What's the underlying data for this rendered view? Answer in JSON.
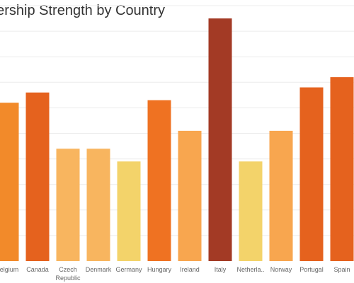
{
  "chart_data": {
    "type": "bar",
    "title": "Leadership Strength by Country",
    "title_visible": "dership Strength by Country",
    "categories": [
      "Belgium",
      "Canada",
      "Czech Republic",
      "Denmark",
      "Germany",
      "Hungary",
      "Ireland",
      "Italy",
      "Netherlands",
      "Norway",
      "Portugal",
      "Spain"
    ],
    "category_labels": [
      "Belgium",
      "Canada",
      "Czech\nRepublic",
      "Denmark",
      "Germany",
      "Hungary",
      "Ireland",
      "Italy",
      "Netherla..",
      "Norway",
      "Portugal",
      "Spain"
    ],
    "values": [
      6.2,
      6.6,
      4.4,
      4.4,
      3.9,
      6.3,
      5.1,
      9.5,
      3.9,
      5.1,
      6.8,
      7.2
    ],
    "colors": [
      "#f28a2a",
      "#e5621e",
      "#f8b55f",
      "#f8b55f",
      "#f3d36a",
      "#ef7222",
      "#f8a64f",
      "#a33a25",
      "#f3d36a",
      "#f8a64f",
      "#e5621e",
      "#e5621e"
    ],
    "ylim": [
      0,
      10
    ],
    "grid": true,
    "xlabel": "",
    "ylabel": ""
  }
}
